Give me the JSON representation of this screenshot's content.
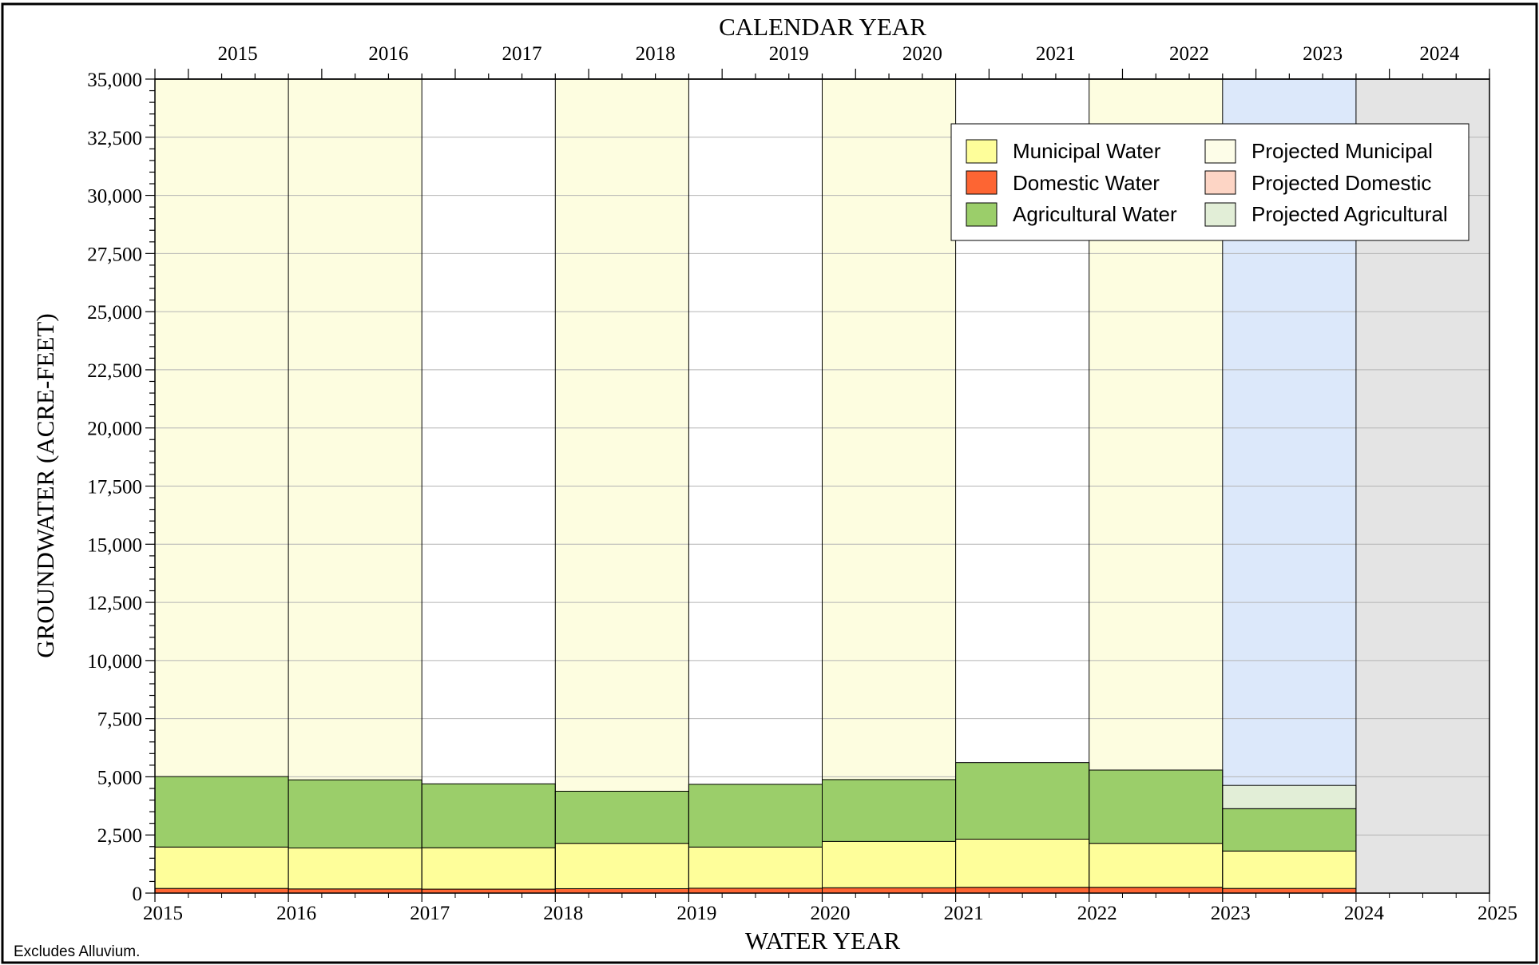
{
  "chart_data": {
    "type": "bar",
    "stacked": true,
    "top_xlabel": "CALENDAR YEAR",
    "xlabel": "WATER YEAR",
    "ylabel": "GROUNDWATER (ACRE-FEET)",
    "ylim": [
      0,
      35000
    ],
    "yticks": [
      0,
      2500,
      5000,
      7500,
      10000,
      12500,
      15000,
      17500,
      20000,
      22500,
      25000,
      27500,
      30000,
      32500,
      35000
    ],
    "ytick_labels": [
      "0",
      "2,500",
      "5,000",
      "7,500",
      "10,000",
      "12,500",
      "15,000",
      "17,500",
      "20,000",
      "22,500",
      "25,000",
      "27,500",
      "30,000",
      "32,500",
      "35,000"
    ],
    "xlim": [
      2015,
      2025
    ],
    "water_year_ticks": [
      "2015",
      "2016",
      "2017",
      "2018",
      "2019",
      "2020",
      "2021",
      "2022",
      "2023",
      "2024",
      "2025"
    ],
    "calendar_year_labels": [
      "2015",
      "2016",
      "2017",
      "2018",
      "2019",
      "2020",
      "2021",
      "2022",
      "2023",
      "2024"
    ],
    "grid": "horizontal",
    "legend_position": "top-right",
    "background_shading": [
      {
        "year": 2015,
        "color": "#fdfde0"
      },
      {
        "year": 2016,
        "color": "#fdfde0"
      },
      {
        "year": 2017,
        "color": "#ffffff"
      },
      {
        "year": 2018,
        "color": "#fdfde0"
      },
      {
        "year": 2019,
        "color": "#ffffff"
      },
      {
        "year": 2020,
        "color": "#fdfde0"
      },
      {
        "year": 2021,
        "color": "#ffffff"
      },
      {
        "year": 2022,
        "color": "#fdfde0"
      },
      {
        "year": 2023,
        "color": "#dce8fa"
      },
      {
        "year": 2024,
        "color": "#e4e4e4"
      }
    ],
    "categories": [
      "2015",
      "2016",
      "2017",
      "2018",
      "2019",
      "2020",
      "2021",
      "2022",
      "2023"
    ],
    "series": [
      {
        "name": "Domestic Water",
        "color": "#fd6533",
        "values": [
          200,
          180,
          170,
          190,
          210,
          230,
          250,
          250,
          200
        ]
      },
      {
        "name": "Municipal Water",
        "color": "#fefe9a",
        "values": [
          1780,
          1760,
          1780,
          1950,
          1770,
          1990,
          2070,
          1890,
          1610
        ]
      },
      {
        "name": "Agricultural Water",
        "color": "#9bce6a",
        "values": [
          3030,
          2930,
          2750,
          2240,
          2700,
          2660,
          3290,
          3150,
          1820
        ]
      },
      {
        "name": "Projected Municipal",
        "color": "#fdfde8",
        "values": [
          0,
          0,
          0,
          0,
          0,
          0,
          0,
          0,
          0
        ]
      },
      {
        "name": "Projected Domestic",
        "color": "#fdd5c5",
        "values": [
          0,
          0,
          0,
          0,
          0,
          0,
          0,
          0,
          0
        ]
      },
      {
        "name": "Projected Agricultural",
        "color": "#e2eed7",
        "values": [
          0,
          0,
          0,
          0,
          0,
          0,
          0,
          0,
          1000
        ]
      }
    ],
    "legend": {
      "columns": [
        [
          "Municipal Water",
          "Domestic Water",
          "Agricultural Water"
        ],
        [
          "Projected Municipal",
          "Projected Domestic",
          "Projected Agricultural"
        ]
      ]
    }
  },
  "note": "Excludes Alluvium."
}
